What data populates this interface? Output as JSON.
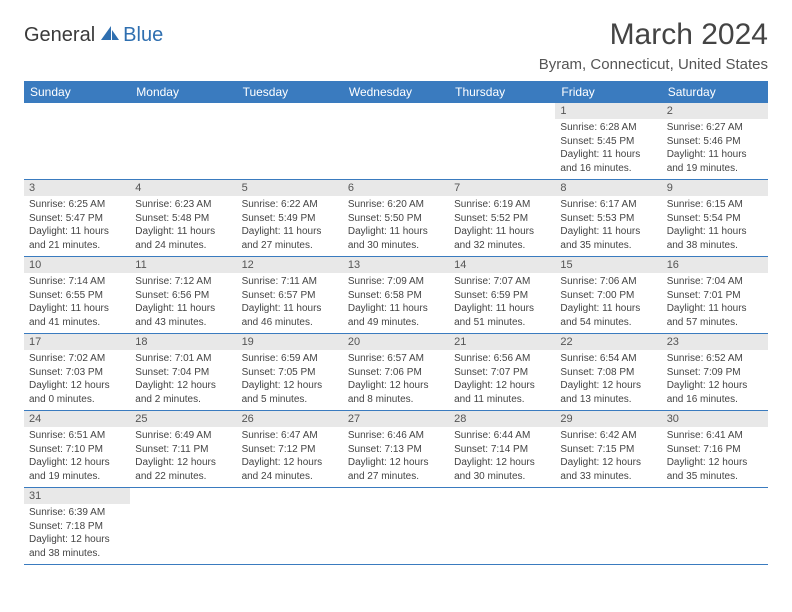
{
  "logo": {
    "text1": "General",
    "text2": "Blue"
  },
  "title": "March 2024",
  "location": "Byram, Connecticut, United States",
  "header_bg": "#3a7bbf",
  "header_fg": "#ffffff",
  "daynum_bg": "#e8e8e8",
  "border_color": "#3a7bbf",
  "day_headers": [
    "Sunday",
    "Monday",
    "Tuesday",
    "Wednesday",
    "Thursday",
    "Friday",
    "Saturday"
  ],
  "weeks": [
    [
      null,
      null,
      null,
      null,
      null,
      {
        "n": "1",
        "sr": "Sunrise: 6:28 AM",
        "ss": "Sunset: 5:45 PM",
        "d1": "Daylight: 11 hours",
        "d2": "and 16 minutes."
      },
      {
        "n": "2",
        "sr": "Sunrise: 6:27 AM",
        "ss": "Sunset: 5:46 PM",
        "d1": "Daylight: 11 hours",
        "d2": "and 19 minutes."
      }
    ],
    [
      {
        "n": "3",
        "sr": "Sunrise: 6:25 AM",
        "ss": "Sunset: 5:47 PM",
        "d1": "Daylight: 11 hours",
        "d2": "and 21 minutes."
      },
      {
        "n": "4",
        "sr": "Sunrise: 6:23 AM",
        "ss": "Sunset: 5:48 PM",
        "d1": "Daylight: 11 hours",
        "d2": "and 24 minutes."
      },
      {
        "n": "5",
        "sr": "Sunrise: 6:22 AM",
        "ss": "Sunset: 5:49 PM",
        "d1": "Daylight: 11 hours",
        "d2": "and 27 minutes."
      },
      {
        "n": "6",
        "sr": "Sunrise: 6:20 AM",
        "ss": "Sunset: 5:50 PM",
        "d1": "Daylight: 11 hours",
        "d2": "and 30 minutes."
      },
      {
        "n": "7",
        "sr": "Sunrise: 6:19 AM",
        "ss": "Sunset: 5:52 PM",
        "d1": "Daylight: 11 hours",
        "d2": "and 32 minutes."
      },
      {
        "n": "8",
        "sr": "Sunrise: 6:17 AM",
        "ss": "Sunset: 5:53 PM",
        "d1": "Daylight: 11 hours",
        "d2": "and 35 minutes."
      },
      {
        "n": "9",
        "sr": "Sunrise: 6:15 AM",
        "ss": "Sunset: 5:54 PM",
        "d1": "Daylight: 11 hours",
        "d2": "and 38 minutes."
      }
    ],
    [
      {
        "n": "10",
        "sr": "Sunrise: 7:14 AM",
        "ss": "Sunset: 6:55 PM",
        "d1": "Daylight: 11 hours",
        "d2": "and 41 minutes."
      },
      {
        "n": "11",
        "sr": "Sunrise: 7:12 AM",
        "ss": "Sunset: 6:56 PM",
        "d1": "Daylight: 11 hours",
        "d2": "and 43 minutes."
      },
      {
        "n": "12",
        "sr": "Sunrise: 7:11 AM",
        "ss": "Sunset: 6:57 PM",
        "d1": "Daylight: 11 hours",
        "d2": "and 46 minutes."
      },
      {
        "n": "13",
        "sr": "Sunrise: 7:09 AM",
        "ss": "Sunset: 6:58 PM",
        "d1": "Daylight: 11 hours",
        "d2": "and 49 minutes."
      },
      {
        "n": "14",
        "sr": "Sunrise: 7:07 AM",
        "ss": "Sunset: 6:59 PM",
        "d1": "Daylight: 11 hours",
        "d2": "and 51 minutes."
      },
      {
        "n": "15",
        "sr": "Sunrise: 7:06 AM",
        "ss": "Sunset: 7:00 PM",
        "d1": "Daylight: 11 hours",
        "d2": "and 54 minutes."
      },
      {
        "n": "16",
        "sr": "Sunrise: 7:04 AM",
        "ss": "Sunset: 7:01 PM",
        "d1": "Daylight: 11 hours",
        "d2": "and 57 minutes."
      }
    ],
    [
      {
        "n": "17",
        "sr": "Sunrise: 7:02 AM",
        "ss": "Sunset: 7:03 PM",
        "d1": "Daylight: 12 hours",
        "d2": "and 0 minutes."
      },
      {
        "n": "18",
        "sr": "Sunrise: 7:01 AM",
        "ss": "Sunset: 7:04 PM",
        "d1": "Daylight: 12 hours",
        "d2": "and 2 minutes."
      },
      {
        "n": "19",
        "sr": "Sunrise: 6:59 AM",
        "ss": "Sunset: 7:05 PM",
        "d1": "Daylight: 12 hours",
        "d2": "and 5 minutes."
      },
      {
        "n": "20",
        "sr": "Sunrise: 6:57 AM",
        "ss": "Sunset: 7:06 PM",
        "d1": "Daylight: 12 hours",
        "d2": "and 8 minutes."
      },
      {
        "n": "21",
        "sr": "Sunrise: 6:56 AM",
        "ss": "Sunset: 7:07 PM",
        "d1": "Daylight: 12 hours",
        "d2": "and 11 minutes."
      },
      {
        "n": "22",
        "sr": "Sunrise: 6:54 AM",
        "ss": "Sunset: 7:08 PM",
        "d1": "Daylight: 12 hours",
        "d2": "and 13 minutes."
      },
      {
        "n": "23",
        "sr": "Sunrise: 6:52 AM",
        "ss": "Sunset: 7:09 PM",
        "d1": "Daylight: 12 hours",
        "d2": "and 16 minutes."
      }
    ],
    [
      {
        "n": "24",
        "sr": "Sunrise: 6:51 AM",
        "ss": "Sunset: 7:10 PM",
        "d1": "Daylight: 12 hours",
        "d2": "and 19 minutes."
      },
      {
        "n": "25",
        "sr": "Sunrise: 6:49 AM",
        "ss": "Sunset: 7:11 PM",
        "d1": "Daylight: 12 hours",
        "d2": "and 22 minutes."
      },
      {
        "n": "26",
        "sr": "Sunrise: 6:47 AM",
        "ss": "Sunset: 7:12 PM",
        "d1": "Daylight: 12 hours",
        "d2": "and 24 minutes."
      },
      {
        "n": "27",
        "sr": "Sunrise: 6:46 AM",
        "ss": "Sunset: 7:13 PM",
        "d1": "Daylight: 12 hours",
        "d2": "and 27 minutes."
      },
      {
        "n": "28",
        "sr": "Sunrise: 6:44 AM",
        "ss": "Sunset: 7:14 PM",
        "d1": "Daylight: 12 hours",
        "d2": "and 30 minutes."
      },
      {
        "n": "29",
        "sr": "Sunrise: 6:42 AM",
        "ss": "Sunset: 7:15 PM",
        "d1": "Daylight: 12 hours",
        "d2": "and 33 minutes."
      },
      {
        "n": "30",
        "sr": "Sunrise: 6:41 AM",
        "ss": "Sunset: 7:16 PM",
        "d1": "Daylight: 12 hours",
        "d2": "and 35 minutes."
      }
    ],
    [
      {
        "n": "31",
        "sr": "Sunrise: 6:39 AM",
        "ss": "Sunset: 7:18 PM",
        "d1": "Daylight: 12 hours",
        "d2": "and 38 minutes."
      },
      null,
      null,
      null,
      null,
      null,
      null
    ]
  ]
}
